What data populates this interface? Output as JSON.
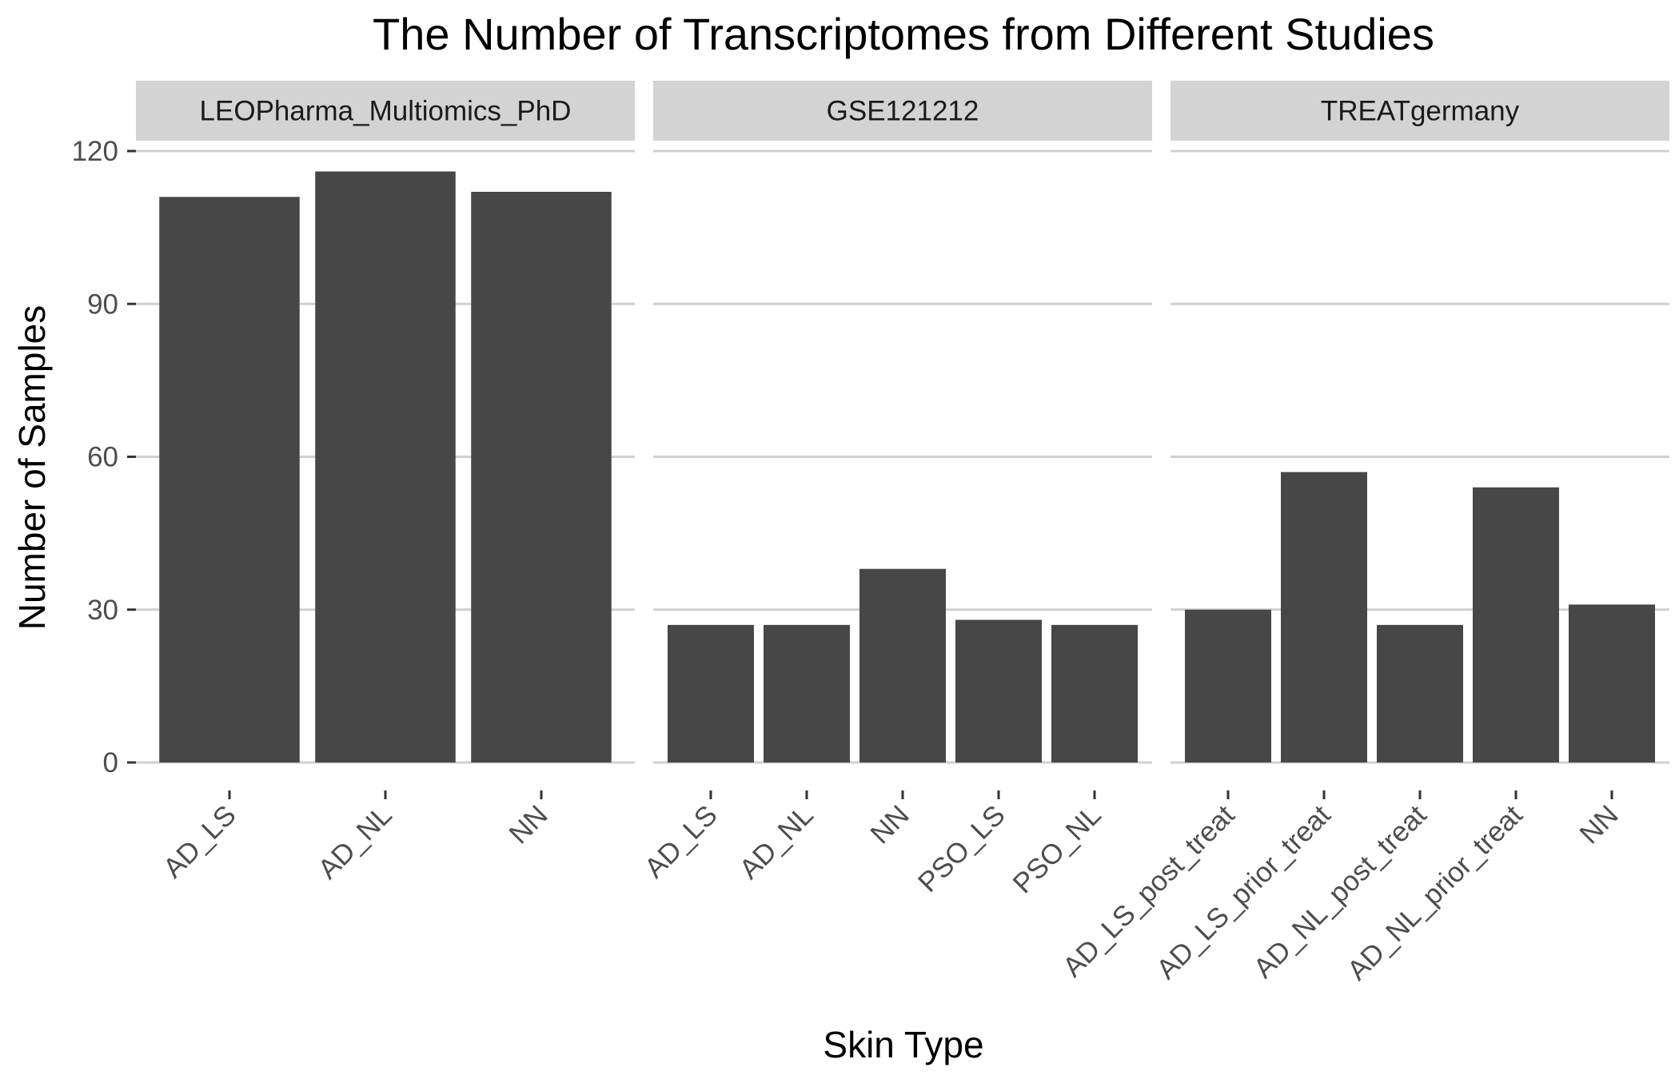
{
  "chart_data": {
    "type": "bar",
    "title": "The Number of Transcriptomes from Different Studies",
    "xlabel": "Skin Type",
    "ylabel": "Number of Samples",
    "ylim": [
      0,
      130
    ],
    "yticks": [
      0,
      30,
      60,
      90,
      120
    ],
    "grid": true,
    "bar_color": "#474747",
    "strip_color": "#d3d3d3",
    "grid_color": "#d0d0d0",
    "facets": [
      {
        "name": "LEOPharma_Multiomics_PhD",
        "categories": [
          "AD_LS",
          "AD_NL",
          "NN"
        ],
        "values": [
          111,
          116,
          112
        ]
      },
      {
        "name": "GSE121212",
        "categories": [
          "AD_LS",
          "AD_NL",
          "NN",
          "PSO_LS",
          "PSO_NL"
        ],
        "values": [
          27,
          27,
          38,
          28,
          27
        ]
      },
      {
        "name": "TREATgermany",
        "categories": [
          "AD_LS_post_treat",
          "AD_LS_prior_treat",
          "AD_NL_post_treat",
          "AD_NL_prior_treat",
          "NN"
        ],
        "values": [
          30,
          57,
          27,
          54,
          31
        ]
      }
    ]
  }
}
